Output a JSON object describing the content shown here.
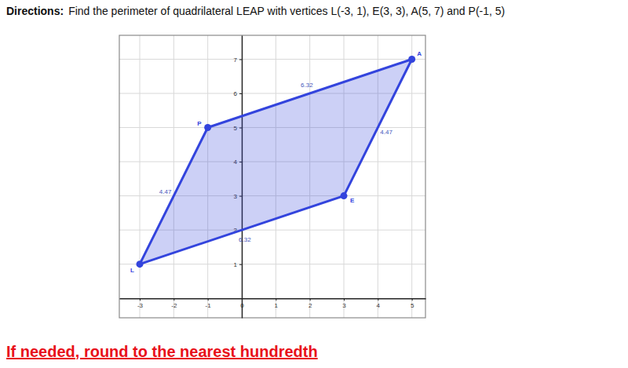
{
  "chart_data": {
    "type": "polygon",
    "title": {
      "label": "Directions:",
      "text": "Find the perimeter of quadrilateral LEAP with vertices L(-3, 1), E(3, 3), A(5, 7) and P(-1, 5)"
    },
    "note": "If needed, round to the nearest hundredth",
    "series": [
      {
        "labels": [
          "L",
          "E",
          "A",
          "P"
        ],
        "x": [
          -3,
          3,
          5,
          -1
        ],
        "values": [
          1,
          3,
          7,
          5
        ],
        "color": "#3344dd",
        "marker": "circle"
      }
    ],
    "edge_lengths": [
      6.32,
      4.47,
      6.32,
      4.47
    ],
    "xlim": [
      -3.6,
      5.4
    ],
    "ylim": [
      -0.57,
      7.7
    ],
    "xticks": [
      -3,
      -2,
      -1,
      0,
      1,
      2,
      3,
      4,
      5
    ],
    "yticks": [
      1,
      2,
      3,
      4,
      5,
      6,
      7
    ],
    "grid": true
  }
}
